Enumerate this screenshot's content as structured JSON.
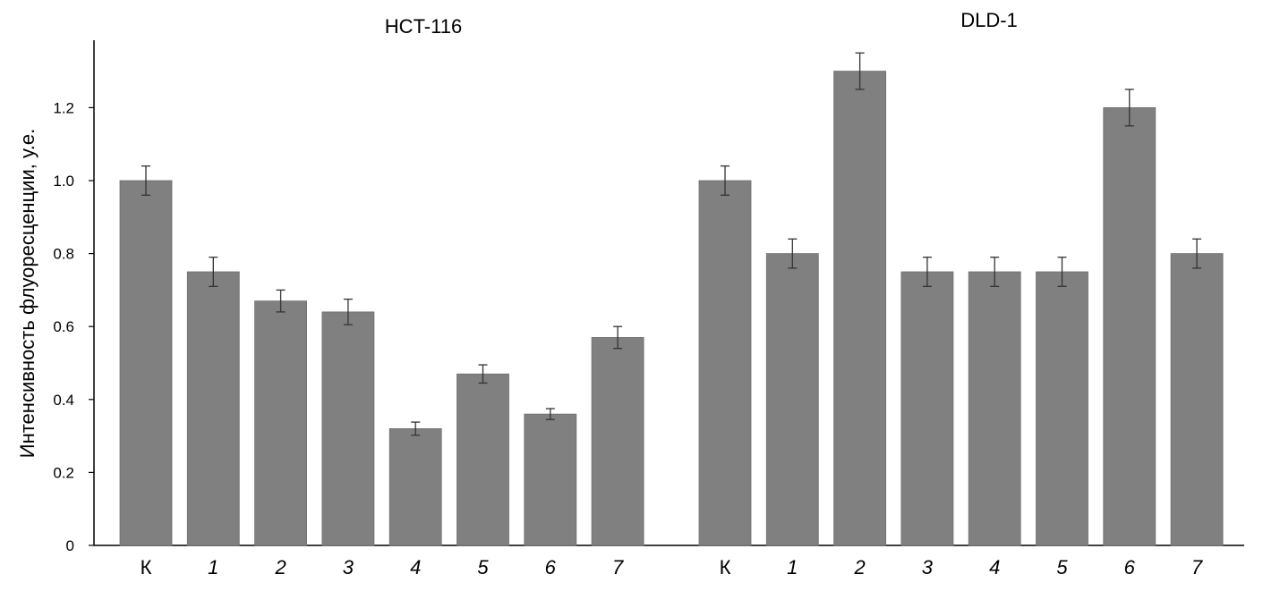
{
  "chart_data": {
    "type": "bar",
    "ylabel": "Интенсивность флуоресценции, у.е.",
    "ylim": [
      0,
      1.4
    ],
    "yticks": [
      "0",
      "0.2",
      "0.4",
      "0.6",
      "0.8",
      "1.0",
      "1.2"
    ],
    "grid": false,
    "legend": "none",
    "bar_color": "#808080",
    "groups": [
      {
        "title": "HCT-116",
        "categories": [
          "К",
          "1",
          "2",
          "3",
          "4",
          "5",
          "6",
          "7"
        ],
        "values": [
          1.0,
          0.75,
          0.67,
          0.64,
          0.32,
          0.47,
          0.36,
          0.57
        ],
        "errors": [
          0.04,
          0.04,
          0.03,
          0.035,
          0.018,
          0.025,
          0.015,
          0.03
        ]
      },
      {
        "title": "DLD-1",
        "categories": [
          "К",
          "1",
          "2",
          "3",
          "4",
          "5",
          "6",
          "7"
        ],
        "values": [
          1.0,
          0.8,
          1.3,
          0.75,
          0.75,
          0.75,
          1.2,
          0.8
        ],
        "errors": [
          0.04,
          0.04,
          0.05,
          0.04,
          0.04,
          0.04,
          0.05,
          0.04
        ]
      }
    ]
  }
}
